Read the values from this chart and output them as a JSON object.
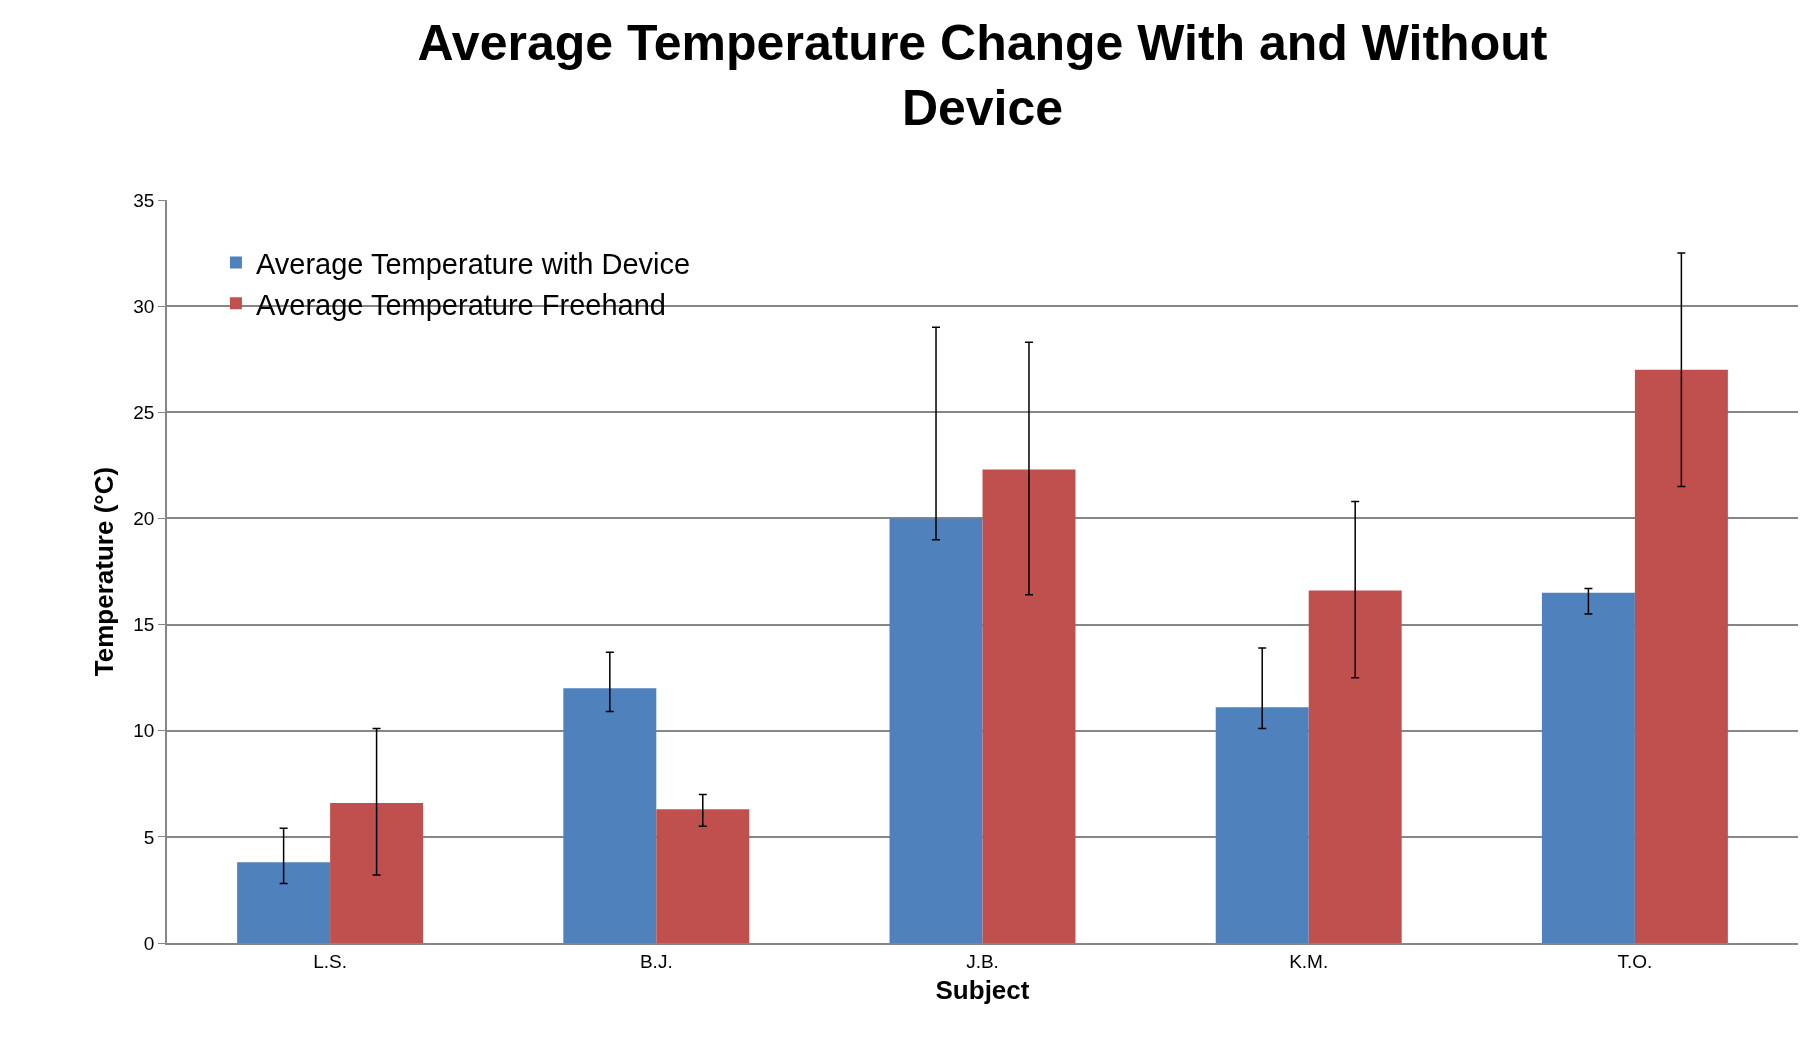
{
  "chart_data": {
    "type": "bar",
    "title": "Average Temperature Change With and Without Device",
    "xlabel": "Subject",
    "ylabel": "Temperature (°C)",
    "categories": [
      "L.S.",
      "B.J.",
      "J.B.",
      "K.M.",
      "T.O."
    ],
    "series": [
      {
        "name": "Average Temperature with Device",
        "color": "#4f81bd",
        "values": [
          3.8,
          12.0,
          20.0,
          11.1,
          16.5
        ],
        "errors": [
          [
            2.8,
            5.4
          ],
          [
            10.9,
            13.7
          ],
          [
            19.0,
            29.0
          ],
          [
            10.1,
            13.9
          ],
          [
            15.5,
            16.7
          ]
        ]
      },
      {
        "name": "Average Temperature Freehand",
        "color": "#c0504d",
        "values": [
          6.6,
          6.3,
          22.3,
          16.6,
          27.0
        ],
        "errors": [
          [
            3.2,
            10.1
          ],
          [
            5.5,
            7.0
          ],
          [
            16.4,
            28.3
          ],
          [
            12.5,
            20.8
          ],
          [
            21.5,
            32.5
          ]
        ]
      }
    ],
    "ylim": [
      0,
      35
    ],
    "yticks": [
      0,
      5,
      10,
      15,
      20,
      25,
      30,
      35
    ],
    "grid": "y",
    "legend": "top left"
  }
}
